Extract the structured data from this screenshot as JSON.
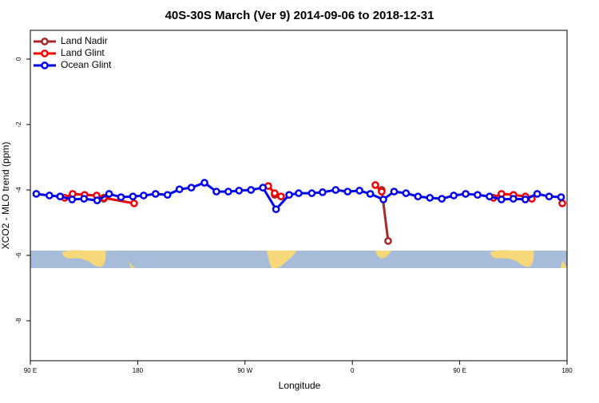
{
  "chart_data": {
    "type": "line",
    "title": "40S-30S March (Ver 9)   2014-09-06 to 2018-12-31",
    "x_label": "Longitude",
    "y_label": "XCO2 - MLO trend (ppm)",
    "xlim": [
      90,
      540
    ],
    "ylim": [
      -9.22,
      0.88
    ],
    "xticks": [
      {
        "value": 90,
        "label": "90 E"
      },
      180,
      {
        "value": 270,
        "label": "90 W"
      },
      {
        "value": 360,
        "label": "0"
      },
      {
        "value": 450,
        "label": "90 E"
      },
      {
        "value": 540,
        "label": "180"
      }
    ],
    "yticks": [
      0,
      -2,
      -4,
      -6,
      -8
    ],
    "legend_position": "top-left",
    "series": [
      {
        "name": "Land Nadir",
        "color": "#a52a2a",
        "x": [
          151.6,
          220,
          294.9,
          340,
          384.6,
          390
        ],
        "values": [
          -4.27,
          null,
          -4.15,
          null,
          -4.0,
          -5.56
        ]
      },
      {
        "name": "Land Glint",
        "color": "#ee0000",
        "x": [
          118.8,
          125.5,
          135.5,
          145.6,
          151.6,
          177,
          230,
          289.5,
          294.9,
          300.2,
          340,
          379.3,
          384.6,
          430,
          478.3,
          485,
          495.1,
          505.1,
          510.5,
          520,
          536
        ],
        "values": [
          -4.24,
          -4.12,
          -4.15,
          -4.17,
          -4.24,
          -4.41,
          null,
          -3.88,
          -4.1,
          -4.2,
          null,
          -3.85,
          -4.05,
          null,
          -4.24,
          -4.12,
          -4.15,
          -4.2,
          -4.27,
          null,
          -4.41
        ]
      },
      {
        "name": "Ocean Glint",
        "color": "#0000ee",
        "x": [
          95,
          106,
          115,
          125,
          135,
          146,
          156,
          166,
          176,
          185,
          195,
          205,
          215,
          225,
          236,
          246,
          256,
          265,
          275,
          285,
          296,
          307,
          315,
          326,
          335,
          346,
          356,
          366,
          375,
          386,
          395,
          405,
          415,
          425,
          435,
          445,
          455,
          465,
          475,
          485,
          495,
          505,
          515,
          525,
          535
        ],
        "values": [
          -4.12,
          -4.17,
          -4.2,
          -4.29,
          -4.27,
          -4.32,
          -4.12,
          -4.22,
          -4.2,
          -4.17,
          -4.12,
          -4.15,
          -3.98,
          -3.93,
          -3.78,
          -4.05,
          -4.05,
          -4.02,
          -4.0,
          -3.93,
          -4.59,
          -4.15,
          -4.1,
          -4.1,
          -4.07,
          -4.0,
          -4.05,
          -4.02,
          -4.12,
          -4.29,
          -4.05,
          -4.1,
          -4.2,
          -4.24,
          -4.27,
          -4.17,
          -4.12,
          -4.15,
          -4.2,
          -4.29,
          -4.27,
          -4.29,
          -4.12,
          -4.2,
          -4.22
        ]
      }
    ]
  }
}
